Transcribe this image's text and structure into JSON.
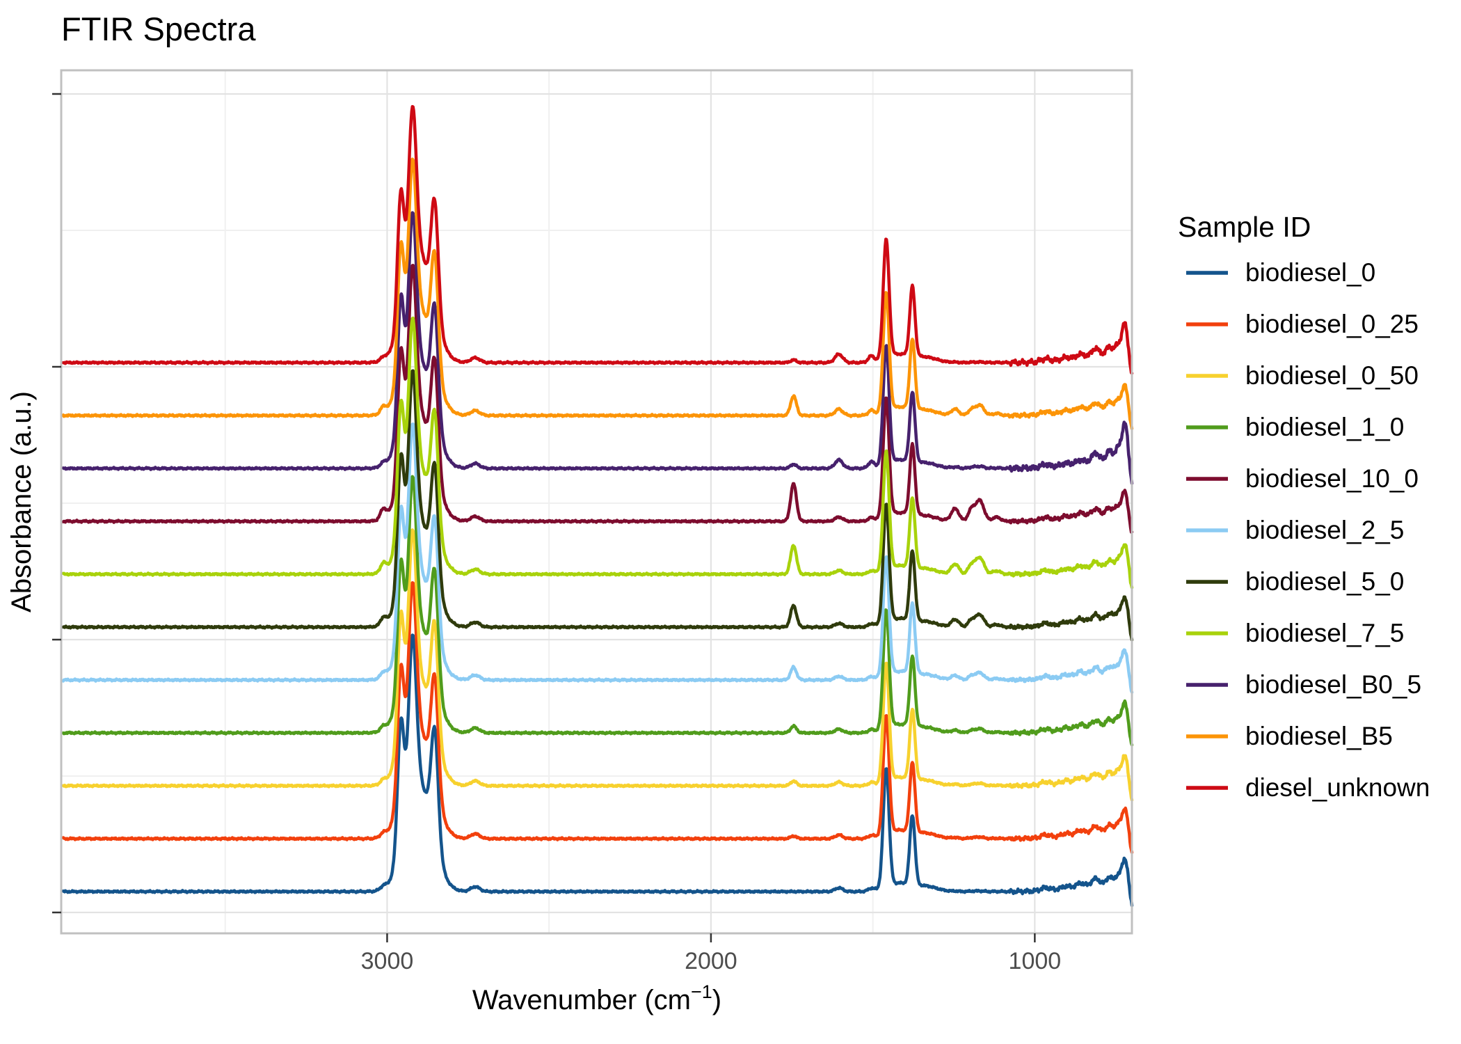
{
  "title": "FTIR Spectra",
  "axes": {
    "x": {
      "label_parts": [
        "Wavenumber (cm",
        "−1",
        ")"
      ],
      "ticks": [
        3000,
        2000,
        1000
      ],
      "range_max": 4000,
      "range_min": 700,
      "reversed": true,
      "minor_ticks": [
        3500,
        2500,
        1500
      ]
    },
    "y": {
      "label": "Absorbance (a.u.)",
      "tick_labels_shown": false,
      "major_grid_count": 4,
      "minor_grid_count": 3
    }
  },
  "legend": {
    "title": "Sample ID"
  },
  "style": {
    "grid_major_color": "#e3e3e3",
    "grid_minor_color": "#f0f0f0",
    "panel_border_color": "#c0c0c0",
    "tick_mark_color": "#333333",
    "tick_label_color": "#4d4d4d",
    "text_color": "#000000"
  },
  "chart_data": {
    "type": "line",
    "title": "FTIR Spectra",
    "xlabel": "Wavenumber (cm^-1)",
    "ylabel": "Absorbance (a.u.)",
    "x_range": [
      4000,
      700
    ],
    "x_ticks": [
      3000,
      2000,
      1000
    ],
    "x_axis_reversed": true,
    "y_axis": "arbitrary units, stacked offsets, no tick labels",
    "offset_step_au": 1.0,
    "shared_bands_au": {
      "ch_stretch_apex_2922": 4.84,
      "ch_stretch_2958": 3.26,
      "ch_stretch_2853": 3.09,
      "ch_bend_1459": 2.34,
      "ch_bend_1378": 1.36,
      "rock_722": 0.5
    },
    "series": [
      {
        "name": "biodiesel_0",
        "color": "#14548C",
        "offset_au": 0,
        "carbonyl_1745_au": 0.0,
        "aromatic_1605_au": 0.07,
        "ester_co_scale": 0.03,
        "jag": 1.1
      },
      {
        "name": "biodiesel_0_25",
        "color": "#F2400D",
        "offset_au": 1,
        "carbonyl_1745_au": 0.05,
        "aromatic_1605_au": 0.07,
        "ester_co_scale": 0.08,
        "jag": 1.0
      },
      {
        "name": "biodiesel_0_50",
        "color": "#F7D12E",
        "offset_au": 2,
        "carbonyl_1745_au": 0.09,
        "aromatic_1605_au": 0.07,
        "ester_co_scale": 0.12,
        "jag": 1.0
      },
      {
        "name": "biodiesel_1_0",
        "color": "#509C1C",
        "offset_au": 3,
        "carbonyl_1745_au": 0.13,
        "aromatic_1605_au": 0.07,
        "ester_co_scale": 0.2,
        "jag": 1.0
      },
      {
        "name": "biodiesel_10_0",
        "color": "#7D0C2E",
        "offset_au": 7,
        "carbonyl_1745_au": 0.71,
        "aromatic_1605_au": 0.08,
        "ester_co_scale": 1.0,
        "jag": 1.0
      },
      {
        "name": "biodiesel_2_5",
        "color": "#8BCBF3",
        "offset_au": 4,
        "carbonyl_1745_au": 0.24,
        "aromatic_1605_au": 0.07,
        "ester_co_scale": 0.35,
        "jag": 1.0
      },
      {
        "name": "biodiesel_5_0",
        "color": "#2F3B0C",
        "offset_au": 5,
        "carbonyl_1745_au": 0.41,
        "aromatic_1605_au": 0.07,
        "ester_co_scale": 0.6,
        "jag": 1.0
      },
      {
        "name": "biodiesel_7_5",
        "color": "#A8D20B",
        "offset_au": 6,
        "carbonyl_1745_au": 0.55,
        "aromatic_1605_au": 0.07,
        "ester_co_scale": 0.8,
        "jag": 1.0
      },
      {
        "name": "biodiesel_B0_5",
        "color": "#46216D",
        "offset_au": 8,
        "carbonyl_1745_au": 0.08,
        "aromatic_1605_au": 0.16,
        "ester_co_scale": 0.1,
        "jag": 1.5
      },
      {
        "name": "biodiesel_B5",
        "color": "#FC9407",
        "offset_au": 9,
        "carbonyl_1745_au": 0.37,
        "aromatic_1605_au": 0.12,
        "ester_co_scale": 0.5,
        "jag": 1.0
      },
      {
        "name": "diesel_unknown",
        "color": "#CE0A14",
        "offset_au": 10,
        "carbonyl_1745_au": 0.05,
        "aromatic_1605_au": 0.16,
        "ester_co_scale": 0.03,
        "jag": 1.3
      }
    ]
  }
}
